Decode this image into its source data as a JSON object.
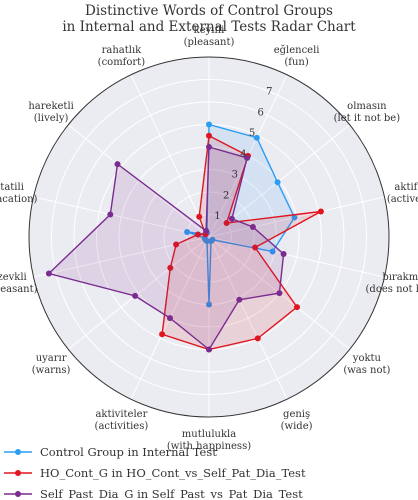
{
  "chart_data": {
    "type": "radar",
    "title_lines": [
      "Distinctive Words of Control Groups",
      "in Internal and External Tests Radar Chart"
    ],
    "axes": [
      {
        "label": "keyifli",
        "sub": "(pleasant)"
      },
      {
        "label": "eğlenceli",
        "sub": "(fun)"
      },
      {
        "label": "olmasın",
        "sub": "(let it not be)"
      },
      {
        "label": "aktif",
        "sub": "(active)"
      },
      {
        "label": "bırakmaz",
        "sub": "(does not leave)"
      },
      {
        "label": "yoktu",
        "sub": "(was not)"
      },
      {
        "label": "geniş",
        "sub": "(wide)"
      },
      {
        "label": "mutlulukla",
        "sub": "(with happiness)"
      },
      {
        "label": "aktiviteler",
        "sub": "(activities)"
      },
      {
        "label": "uyarır",
        "sub": "(warns)"
      },
      {
        "label": "zevkli",
        "sub": "(pleasant)"
      },
      {
        "label": "tatili",
        "sub": "(vacation)"
      },
      {
        "label": "hareketli",
        "sub": "(lively)"
      },
      {
        "label": "rahatlık",
        "sub": "(comfort)"
      }
    ],
    "rlim": [
      0,
      8
    ],
    "rticks": [
      1,
      2,
      3,
      4,
      5,
      6,
      7
    ],
    "series": [
      {
        "name": "Control Group in Internal Test",
        "color": "#2a9df4",
        "values": [
          5.0,
          4.9,
          3.9,
          3.9,
          2.9,
          0.2,
          0.2,
          3.0,
          0.2,
          0.2,
          0.2,
          1.0,
          0.2,
          0.2
        ]
      },
      {
        "name": "HO_Cont_G in HO_Cont_vs_Self_Pat_Dia_Test",
        "color": "#e0151f",
        "values": [
          4.5,
          4.0,
          1.0,
          5.1,
          2.1,
          5.0,
          5.0,
          5.0,
          4.8,
          2.2,
          1.5,
          0.5,
          0.2,
          1.0
        ]
      },
      {
        "name": "Self_Past_Dia_G in Self_Past_vs_Pat_Dia_Test",
        "color": "#7b2c8f",
        "values": [
          4.0,
          3.9,
          1.3,
          2.0,
          3.4,
          4.0,
          3.1,
          5.0,
          4.0,
          4.2,
          7.3,
          4.5,
          5.2,
          0.3
        ]
      }
    ],
    "legend_position": "bottom"
  }
}
